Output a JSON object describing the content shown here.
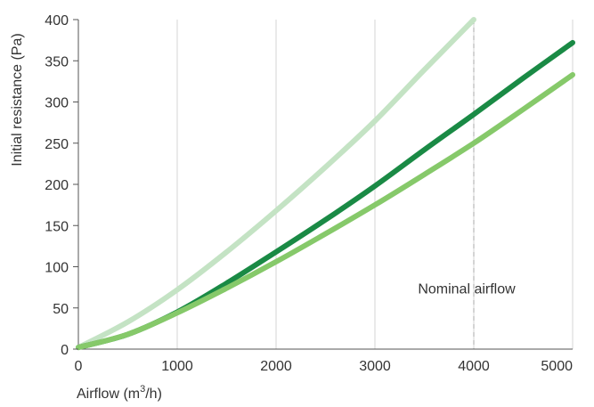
{
  "chart_data": {
    "type": "line",
    "title": "",
    "xlabel_prefix": "Airflow (m",
    "xlabel_sup": "3",
    "xlabel_suffix": "/h)",
    "ylabel": "Initial resistance (Pa)",
    "xlim": [
      0,
      5000
    ],
    "ylim": [
      0,
      400
    ],
    "x_ticks": [
      0,
      1000,
      2000,
      3000,
      4000,
      5000
    ],
    "y_ticks": [
      0,
      50,
      100,
      150,
      200,
      250,
      300,
      350,
      400
    ],
    "grid": "vertical",
    "legend": "none",
    "annotations": [
      {
        "text": "Nominal airflow",
        "x": 4000,
        "type": "vertical-dashed-line"
      }
    ],
    "series": [
      {
        "color": "#c4e3c4",
        "x": [
          0,
          500,
          1000,
          1500,
          2000,
          2500,
          3000,
          3500,
          4000
        ],
        "y": [
          2,
          33,
          72,
          118,
          168,
          221,
          277,
          339,
          400
        ]
      },
      {
        "color": "#1a8a45",
        "x": [
          0,
          500,
          1000,
          1500,
          2000,
          2500,
          3000,
          3500,
          4000,
          4500,
          5000
        ],
        "y": [
          2,
          18,
          45,
          80,
          118,
          157,
          198,
          242,
          285,
          329,
          372
        ]
      },
      {
        "color": "#86c96a",
        "x": [
          0,
          500,
          1000,
          1500,
          2000,
          2500,
          3000,
          3500,
          4000,
          4500,
          5000
        ],
        "y": [
          2,
          18,
          44,
          74,
          106,
          140,
          175,
          212,
          250,
          291,
          333
        ]
      }
    ]
  }
}
